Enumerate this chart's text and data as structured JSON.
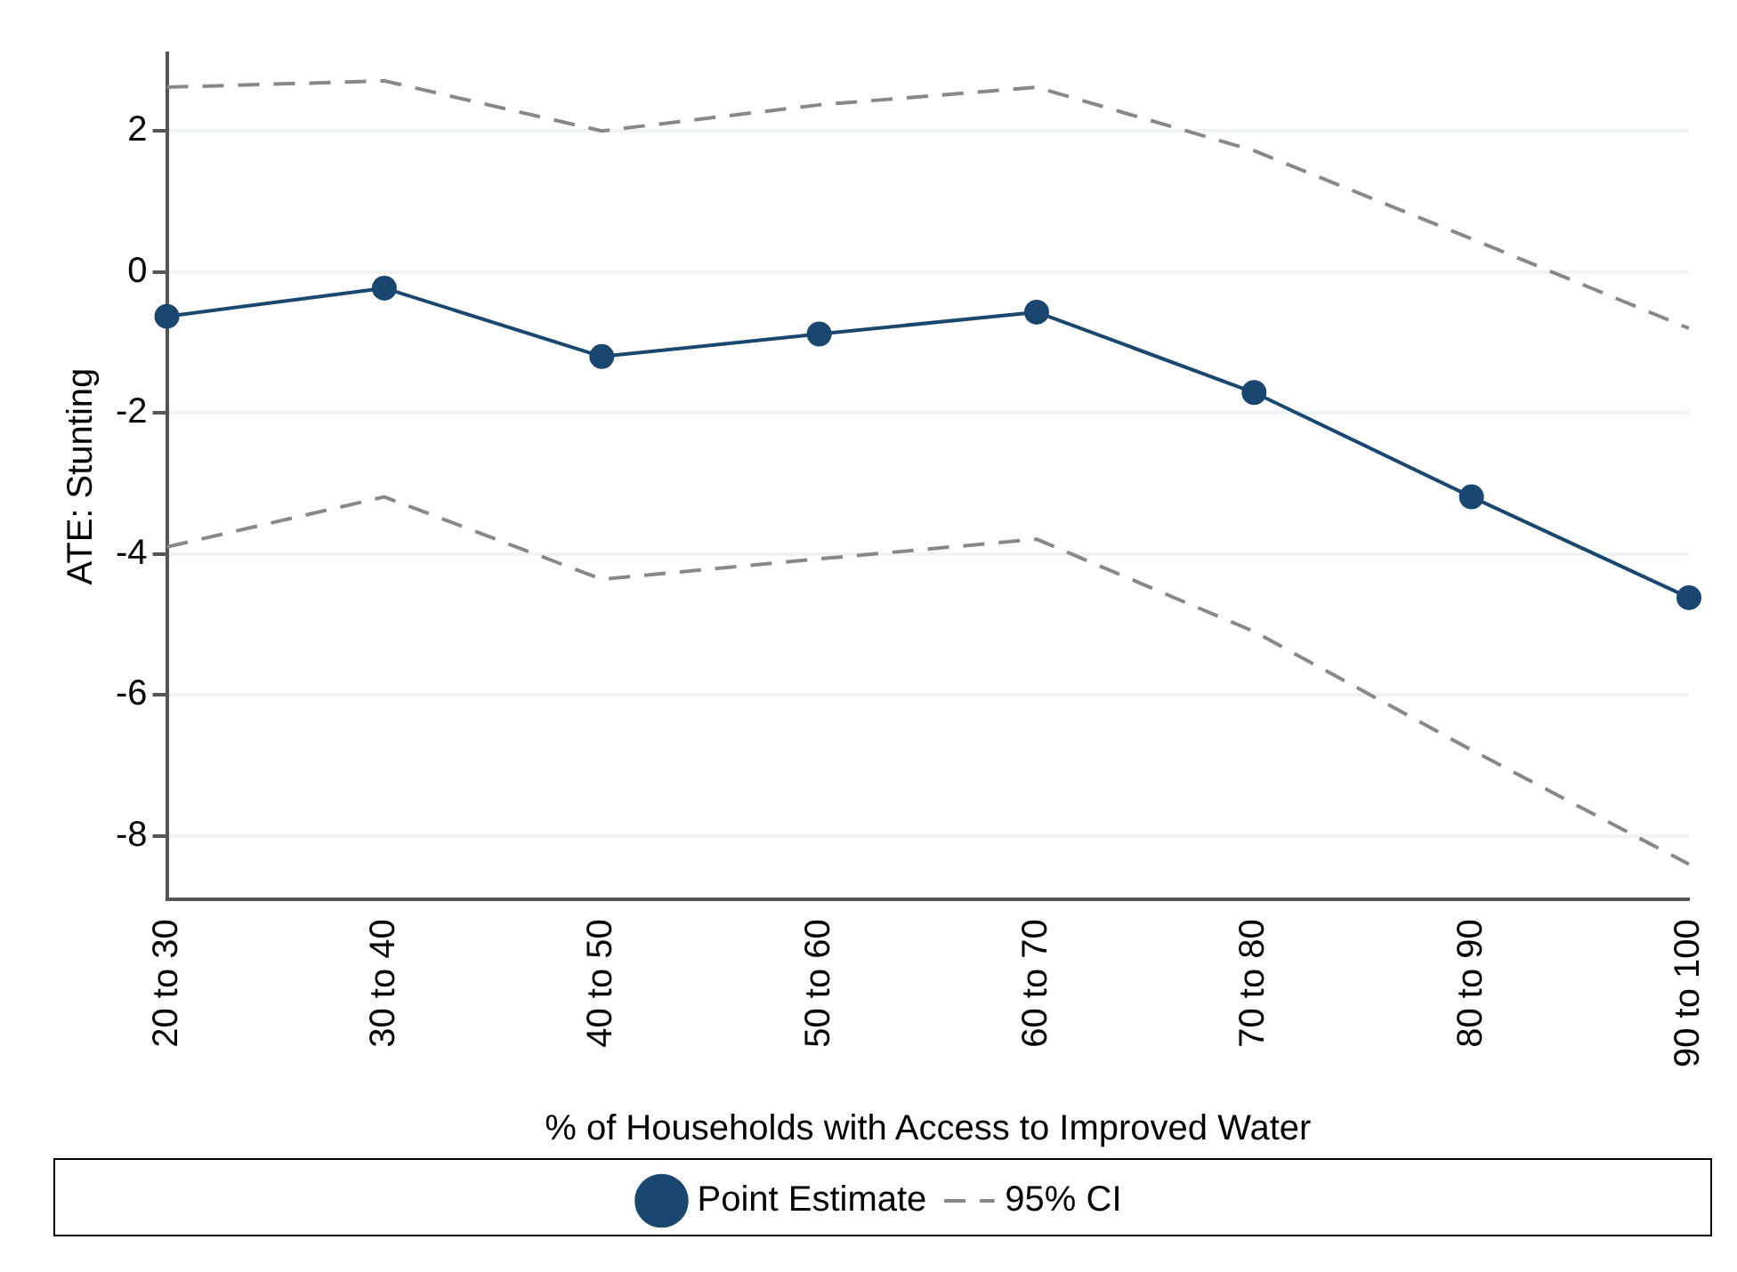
{
  "chart_data": {
    "type": "line",
    "xlabel": "% of Households with Access to Improved Water",
    "ylabel": "ATE: Stunting",
    "categories": [
      "20 to 30",
      "30 to 40",
      "40 to 50",
      "50 to 60",
      "60 to 70",
      "70 to 80",
      "80 to 90",
      "90 to 100"
    ],
    "series": [
      {
        "name": "Point Estimate",
        "color": "#1a476f",
        "marker": "circle",
        "line_style": "solid",
        "values": [
          -0.63,
          -0.23,
          -1.2,
          -0.88,
          -0.57,
          -1.71,
          -3.19,
          -4.62
        ]
      },
      {
        "name": "95% CI",
        "color": "#888888",
        "marker": "none",
        "line_style": "dashed",
        "values": [
          2.62,
          2.71,
          2.0,
          2.37,
          2.62,
          1.72,
          0.47,
          -0.8
        ]
      },
      {
        "color": "#888888",
        "marker": "none",
        "line_style": "dashed",
        "values": [
          -3.9,
          -3.19,
          -4.36,
          -4.07,
          -3.79,
          -5.1,
          -6.78,
          -8.4
        ]
      }
    ],
    "ylim": [
      -8.9,
      3.1
    ],
    "yticks": [
      -8,
      -6,
      -4,
      -2,
      0,
      2
    ],
    "grid": "y",
    "legend": "bottom"
  }
}
